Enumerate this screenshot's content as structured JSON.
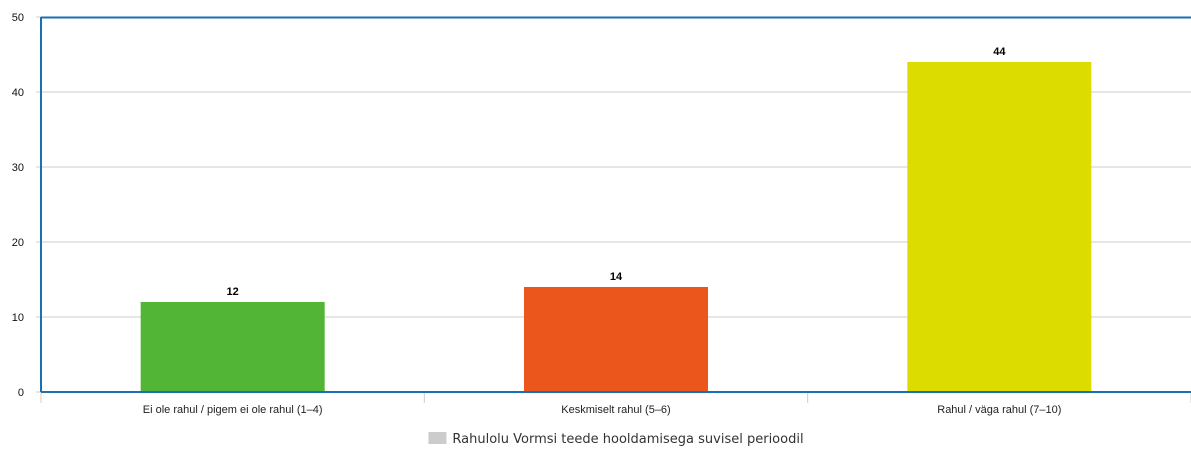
{
  "chart_data": {
    "type": "bar",
    "categories": [
      "Ei ole rahul / pigem ei ole rahul (1–4)",
      "Keskmiselt rahul (5–6)",
      "Rahul / väga rahul (7–10)"
    ],
    "series": [
      {
        "name": "Rahulolu Vormsi teede hooldamisega suvisel perioodil",
        "values": [
          12,
          14,
          44
        ],
        "colors": [
          "#52b535",
          "#ea561c",
          "#dcdc00"
        ]
      }
    ],
    "ylim": [
      0,
      50
    ],
    "yticks": [
      0,
      10,
      20,
      30,
      40,
      50
    ],
    "title": "",
    "xlabel": "",
    "ylabel": "",
    "grid": true,
    "legend_position": "bottom-center",
    "legend_color": "#cccccc",
    "axis_color": "#1a6fb5",
    "grid_color": "#cccccc"
  }
}
